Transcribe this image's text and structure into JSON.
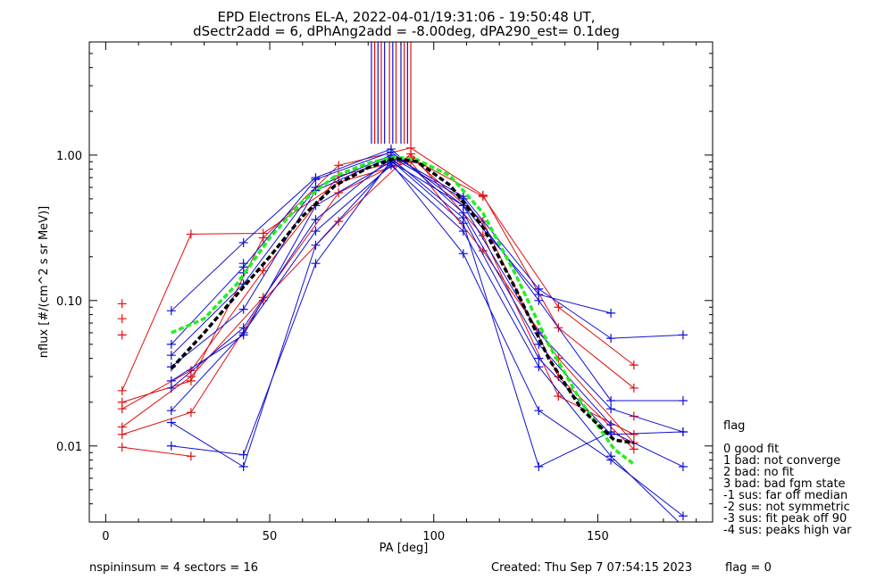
{
  "chart_data": {
    "type": "line",
    "title_line1": "EPD Electrons EL-A, 2022-04-01/19:31:06 - 19:50:48 UT,",
    "title_line2": "dSectr2add = 6, dPhAng2add = -8.00deg, dPA290_est=   0.1deg",
    "xlabel": "PA [deg]",
    "ylabel": "nflux [#/(cm^2 s sr MeV)]",
    "xlim": [
      -5,
      185
    ],
    "ylim": [
      0.003,
      6
    ],
    "yscale": "log",
    "x_ticks": [
      0,
      50,
      100,
      150
    ],
    "y_ticks": [
      {
        "value": 0.01,
        "label": "0.01"
      },
      {
        "value": 0.1,
        "label": "0.10"
      },
      {
        "value": 1,
        "label": "1.00"
      }
    ],
    "legend_title": "flag",
    "legend": [
      " 0 good fit",
      " 1 bad: not converge",
      " 2 bad: no fit",
      " 3 bad: bad fgm state",
      "-1 sus: far off median",
      "-2 sus: not symmetric",
      "-3 sus: fit peak off 90",
      "-4 sus: peaks high var"
    ],
    "colors": {
      "red": "#e01010",
      "blue": "#1010d0",
      "green": "#22ee22",
      "black": "#000000"
    },
    "vertical_markers": [
      {
        "x": 81,
        "color": "blue"
      },
      {
        "x": 82,
        "color": "red"
      },
      {
        "x": 83,
        "color": "blue"
      },
      {
        "x": 84,
        "color": "red"
      },
      {
        "x": 85,
        "color": "blue"
      },
      {
        "x": 86.5,
        "color": "red"
      },
      {
        "x": 87.5,
        "color": "blue"
      },
      {
        "x": 88.5,
        "color": "red"
      },
      {
        "x": 90,
        "color": "blue"
      },
      {
        "x": 91,
        "color": "red"
      },
      {
        "x": 92,
        "color": "blue"
      },
      {
        "x": 93,
        "color": "red"
      }
    ],
    "series": [
      {
        "color": "red",
        "points": [
          [
            5,
            0.0098
          ],
          [
            26,
            0.0085
          ]
        ]
      },
      {
        "color": "red",
        "points": [
          [
            5,
            0.012
          ],
          [
            26,
            0.017
          ],
          [
            48,
            0.1
          ],
          [
            71,
            0.35
          ],
          [
            93,
            1.02
          ],
          [
            115,
            0.28
          ],
          [
            138,
            0.022
          ],
          [
            161,
            0.012
          ]
        ]
      },
      {
        "color": "red",
        "points": [
          [
            5,
            0.0135
          ],
          [
            26,
            0.03
          ],
          [
            48,
            0.105
          ],
          [
            71,
            0.55
          ],
          [
            93,
            0.97
          ],
          [
            115,
            0.35
          ],
          [
            138,
            0.03
          ],
          [
            161,
            0.0095
          ]
        ]
      },
      {
        "color": "red",
        "points": [
          [
            5,
            0.018
          ],
          [
            26,
            0.033
          ],
          [
            48,
            0.16
          ],
          [
            71,
            0.72
          ],
          [
            93,
            0.95
          ],
          [
            115,
            0.52
          ],
          [
            138,
            0.09
          ],
          [
            161,
            0.036
          ]
        ]
      },
      {
        "color": "red",
        "points": [
          [
            5,
            0.02
          ],
          [
            26,
            0.028
          ],
          [
            48,
            0.27
          ],
          [
            71,
            0.85
          ],
          [
            93,
            1.12
          ],
          [
            115,
            0.53
          ],
          [
            138,
            0.065
          ],
          [
            161,
            0.025
          ]
        ]
      },
      {
        "color": "red",
        "points": [
          [
            5,
            0.024
          ],
          [
            26,
            0.286
          ],
          [
            48,
            0.29
          ],
          [
            71,
            0.65
          ],
          [
            93,
            0.9
          ],
          [
            115,
            0.22
          ],
          [
            138,
            0.04
          ],
          [
            161,
            0.0105
          ]
        ]
      },
      {
        "color": "red",
        "points": [
          [
            5,
            0.095
          ]
        ]
      },
      {
        "color": "red",
        "points": [
          [
            5,
            0.075
          ]
        ]
      },
      {
        "color": "red",
        "points": [
          [
            5,
            0.058
          ]
        ]
      },
      {
        "color": "red",
        "points": [
          [
            161,
            0.016
          ]
        ]
      },
      {
        "color": "blue",
        "points": [
          [
            20,
            0.01
          ],
          [
            42,
            0.0087
          ],
          [
            64,
            0.18
          ],
          [
            87,
            0.92
          ],
          [
            109,
            0.34
          ],
          [
            132,
            0.0072
          ],
          [
            154,
            0.0125
          ],
          [
            176,
            0.0072
          ]
        ]
      },
      {
        "color": "blue",
        "points": [
          [
            20,
            0.0145
          ],
          [
            42,
            0.0072
          ],
          [
            64,
            0.24
          ],
          [
            87,
            0.88
          ],
          [
            109,
            0.21
          ],
          [
            132,
            0.0175
          ],
          [
            154,
            0.008
          ],
          [
            176,
            0.0033
          ]
        ]
      },
      {
        "color": "blue",
        "points": [
          [
            20,
            0.0175
          ],
          [
            42,
            0.06
          ],
          [
            64,
            0.3
          ],
          [
            87,
            0.85
          ],
          [
            109,
            0.3
          ],
          [
            132,
            0.035
          ],
          [
            154,
            0.0085
          ],
          [
            176,
            0.0028
          ]
        ]
      },
      {
        "color": "blue",
        "points": [
          [
            20,
            0.025
          ],
          [
            42,
            0.065
          ],
          [
            64,
            0.36
          ],
          [
            87,
            0.95
          ],
          [
            109,
            0.37
          ],
          [
            132,
            0.04
          ],
          [
            154,
            0.012
          ],
          [
            176,
            0.0125
          ]
        ]
      },
      {
        "color": "blue",
        "points": [
          [
            20,
            0.028
          ],
          [
            42,
            0.058
          ],
          [
            64,
            0.45
          ],
          [
            87,
            0.9
          ],
          [
            109,
            0.45
          ],
          [
            132,
            0.06
          ],
          [
            154,
            0.018
          ],
          [
            176,
            0.0125
          ]
        ]
      },
      {
        "color": "blue",
        "points": [
          [
            20,
            0.035
          ],
          [
            42,
            0.087
          ],
          [
            64,
            0.57
          ],
          [
            87,
            0.97
          ],
          [
            109,
            0.5
          ],
          [
            132,
            0.1
          ],
          [
            154,
            0.0205
          ],
          [
            176,
            0.0205
          ]
        ]
      },
      {
        "color": "blue",
        "points": [
          [
            20,
            0.042
          ],
          [
            42,
            0.13
          ],
          [
            64,
            0.6
          ],
          [
            87,
            1.0
          ],
          [
            109,
            0.52
          ],
          [
            132,
            0.12
          ],
          [
            154,
            0.055
          ],
          [
            176,
            0.058
          ]
        ]
      },
      {
        "color": "blue",
        "points": [
          [
            20,
            0.05
          ],
          [
            42,
            0.17
          ],
          [
            64,
            0.68
          ],
          [
            87,
            1.05
          ],
          [
            109,
            0.45
          ],
          [
            132,
            0.11
          ],
          [
            154,
            0.082
          ]
        ]
      },
      {
        "color": "blue",
        "points": [
          [
            20,
            0.085
          ],
          [
            42,
            0.25
          ],
          [
            64,
            0.7
          ],
          [
            87,
            1.1
          ],
          [
            109,
            0.4
          ],
          [
            132,
            0.05
          ],
          [
            154,
            0.014
          ]
        ]
      },
      {
        "color": "blue",
        "points": [
          [
            42,
            0.18
          ]
        ]
      },
      {
        "color": "blue",
        "points": [
          [
            42,
            0.155
          ]
        ]
      }
    ],
    "fits": [
      {
        "color": "green",
        "points": [
          [
            20,
            0.06
          ],
          [
            30,
            0.075
          ],
          [
            40,
            0.13
          ],
          [
            50,
            0.27
          ],
          [
            60,
            0.48
          ],
          [
            70,
            0.72
          ],
          [
            80,
            0.88
          ],
          [
            88,
            0.97
          ],
          [
            95,
            0.93
          ],
          [
            105,
            0.72
          ],
          [
            115,
            0.4
          ],
          [
            125,
            0.15
          ],
          [
            135,
            0.05
          ],
          [
            145,
            0.02
          ],
          [
            155,
            0.0095
          ],
          [
            161,
            0.0075
          ]
        ]
      },
      {
        "color": "black",
        "points": [
          [
            20,
            0.034
          ],
          [
            30,
            0.06
          ],
          [
            40,
            0.11
          ],
          [
            50,
            0.2
          ],
          [
            60,
            0.38
          ],
          [
            70,
            0.62
          ],
          [
            80,
            0.82
          ],
          [
            88,
            0.95
          ],
          [
            95,
            0.9
          ],
          [
            105,
            0.62
          ],
          [
            115,
            0.32
          ],
          [
            125,
            0.12
          ],
          [
            135,
            0.04
          ],
          [
            145,
            0.018
          ],
          [
            155,
            0.011
          ],
          [
            161,
            0.0105
          ]
        ]
      }
    ]
  },
  "footer": {
    "left": "nspininsum =  4  sectors = 16",
    "created": "Created: Thu Sep  7 07:54:15 2023",
    "flag": "flag = 0"
  }
}
